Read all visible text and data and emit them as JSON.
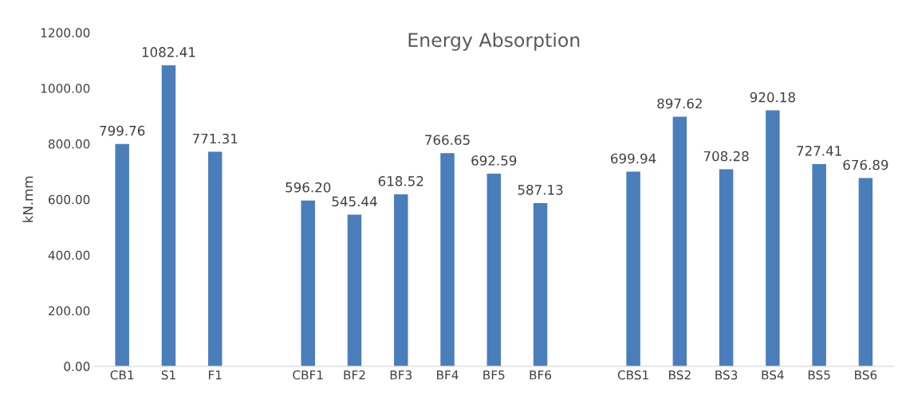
{
  "chart_data": {
    "type": "bar",
    "title": "Energy Absorption",
    "ylabel": "kN.mm",
    "categories": [
      "CB1",
      "S1",
      "F1",
      null,
      "CBF1",
      "BF2",
      "BF3",
      "BF4",
      "BF5",
      "BF6",
      null,
      "CBS1",
      "BS2",
      "BS3",
      "BS4",
      "BS5",
      "BS6"
    ],
    "values": [
      799.76,
      1082.41,
      771.31,
      null,
      596.2,
      545.44,
      618.52,
      766.65,
      692.59,
      587.13,
      null,
      699.94,
      897.62,
      708.28,
      920.18,
      727.41,
      676.89
    ],
    "value_labels": [
      "799.76",
      "1082.41",
      "771.31",
      null,
      "596.20",
      "545.44",
      "618.52",
      "766.65",
      "692.59",
      "587.13",
      null,
      "699.94",
      "897.62",
      "708.28",
      "920.18",
      "727.41",
      "676.89"
    ],
    "color": "#4a7ebb",
    "ylim": [
      0,
      1200
    ],
    "yticks": [
      {
        "value": 0,
        "label": "0.00"
      },
      {
        "value": 200,
        "label": "200.00"
      },
      {
        "value": 400,
        "label": "400.00"
      },
      {
        "value": 600,
        "label": "600.00"
      },
      {
        "value": 800,
        "label": "800.00"
      },
      {
        "value": 1000,
        "label": "1000.00"
      },
      {
        "value": 1200,
        "label": "1200.00"
      }
    ],
    "grid": false,
    "legend": false
  }
}
